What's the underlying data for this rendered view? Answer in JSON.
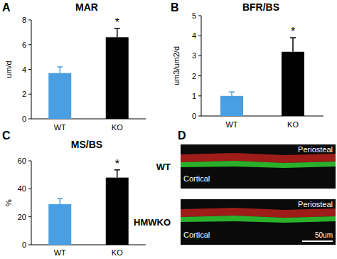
{
  "chart_data": [
    {
      "type": "bar",
      "panel_label": "A",
      "title": "MAR",
      "y_label": "um/d",
      "categories": [
        "WT",
        "KO"
      ],
      "values": [
        3.7,
        6.6
      ],
      "errors": [
        0.5,
        0.7
      ],
      "significance": [
        null,
        "*"
      ],
      "colors": [
        "#4a9fe3",
        "#000000"
      ],
      "ylim": [
        0,
        8
      ],
      "yticks": [
        0,
        2,
        4,
        6,
        8
      ],
      "grid": false
    },
    {
      "type": "bar",
      "panel_label": "B",
      "title": "BFR/BS",
      "y_label": "um3/um2/d",
      "categories": [
        "WT",
        "KO"
      ],
      "values": [
        1.0,
        3.2
      ],
      "errors": [
        0.2,
        0.7
      ],
      "significance": [
        null,
        "*"
      ],
      "colors": [
        "#4a9fe3",
        "#000000"
      ],
      "ylim": [
        0,
        5
      ],
      "yticks": [
        0,
        1,
        2,
        3,
        4,
        5
      ],
      "grid": false
    },
    {
      "type": "bar",
      "panel_label": "C",
      "title": "MS/BS",
      "y_label": "%",
      "categories": [
        "WT",
        "KO"
      ],
      "values": [
        29,
        48
      ],
      "errors": [
        4,
        5.5
      ],
      "significance": [
        null,
        "*"
      ],
      "colors": [
        "#4a9fe3",
        "#000000"
      ],
      "ylim": [
        0,
        60
      ],
      "yticks": [
        0,
        20,
        40,
        60
      ],
      "grid": false
    }
  ],
  "image_panel": {
    "panel_label": "D",
    "rows": [
      {
        "label": "WT",
        "upper": "Periosteal",
        "lower": "Cortical"
      },
      {
        "label": "HMWKO",
        "upper": "Periosteal",
        "lower": "Cortical"
      }
    ],
    "scale_bar": "50um"
  }
}
